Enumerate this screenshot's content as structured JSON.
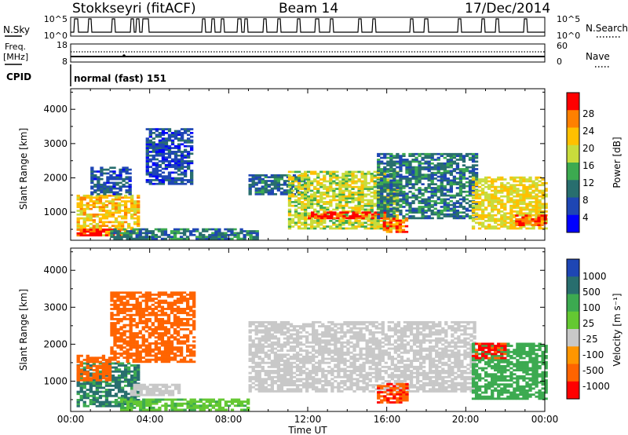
{
  "header": {
    "station": "Stokkseyri (fitACF)",
    "beam": "Beam 14",
    "date": "17/Dec/2014"
  },
  "noise_panel": {
    "left_label": "N.Sky",
    "right_label": "N.Search",
    "left_ticks": [
      "10^5",
      "10^0"
    ],
    "right_ticks": [
      "10^5",
      "10^0"
    ]
  },
  "freq_panel": {
    "left_label_1": "Freq.",
    "left_label_2": "[MHz]",
    "left_ticks": [
      "18",
      "8"
    ],
    "right_label": "Nave",
    "right_ticks": [
      "60",
      "0"
    ]
  },
  "cpid": {
    "label": "CPID",
    "text": "normal (fast) 151"
  },
  "x_axis": {
    "label": "Time UT",
    "ticks": [
      "00:00",
      "04:00",
      "08:00",
      "12:00",
      "16:00",
      "20:00",
      "00:00"
    ]
  },
  "y_axis": {
    "label": "Slant Range [km]",
    "ticks": [
      "1000",
      "2000",
      "3000",
      "4000"
    ]
  },
  "power_colorbar": {
    "label": "Power [dB]",
    "ticks": [
      "28",
      "24",
      "20",
      "16",
      "12",
      "8",
      "4"
    ],
    "colors": [
      "#ff0000",
      "#ff8000",
      "#ffc000",
      "#c8dc3c",
      "#3caa50",
      "#286e6e",
      "#1e46b4",
      "#0000ff"
    ]
  },
  "velocity_colorbar": {
    "label": "Velocity [m s⁻¹]",
    "ticks": [
      "1000",
      "500",
      "100",
      "25",
      "-25",
      "-100",
      "-500",
      "-1000"
    ],
    "colors": [
      "#1e46b4",
      "#286e6e",
      "#3caa50",
      "#64c832",
      "#c8c8c8",
      "#ff9600",
      "#ff6400",
      "#ff0000"
    ]
  },
  "chart_data": [
    {
      "type": "heatmap",
      "panel": "power",
      "colorbar_label": "Power [dB]",
      "xlabel": "Time UT",
      "ylabel": "Slant Range [km]",
      "xlim": [
        "00:00",
        "24:00"
      ],
      "ylim": [
        180,
        4600
      ],
      "clim": [
        0,
        32
      ],
      "regions": [
        {
          "t0": 0.3,
          "t1": 3.5,
          "r0": 300,
          "r1": 1500,
          "level": 22
        },
        {
          "t0": 0.3,
          "t1": 2.5,
          "r0": 300,
          "r1": 500,
          "level": 30
        },
        {
          "t0": 1.0,
          "t1": 3.0,
          "r0": 1500,
          "r1": 2300,
          "level": 7
        },
        {
          "t0": 3.8,
          "t1": 6.2,
          "r0": 1800,
          "r1": 3400,
          "level": 6
        },
        {
          "t0": 2.0,
          "t1": 9.5,
          "r0": 200,
          "r1": 500,
          "level": 10
        },
        {
          "t0": 9.0,
          "t1": 12.0,
          "r0": 1500,
          "r1": 2100,
          "level": 9
        },
        {
          "t0": 11.0,
          "t1": 16.5,
          "r0": 500,
          "r1": 2200,
          "level": 18
        },
        {
          "t0": 12.0,
          "t1": 16.0,
          "r0": 800,
          "r1": 1000,
          "level": 29
        },
        {
          "t0": 15.5,
          "t1": 20.5,
          "r0": 800,
          "r1": 2700,
          "level": 10
        },
        {
          "t0": 15.8,
          "t1": 17.0,
          "r0": 400,
          "r1": 800,
          "level": 27
        },
        {
          "t0": 20.3,
          "t1": 24.0,
          "r0": 500,
          "r1": 2000,
          "level": 20
        },
        {
          "t0": 22.5,
          "t1": 24.0,
          "r0": 600,
          "r1": 900,
          "level": 28
        }
      ]
    },
    {
      "type": "heatmap",
      "panel": "velocity",
      "colorbar_label": "Velocity [m s⁻¹]",
      "xlabel": "Time UT",
      "ylabel": "Slant Range [km]",
      "xlim": [
        "00:00",
        "24:00"
      ],
      "ylim": [
        180,
        4600
      ],
      "clim": [
        -1000,
        1000
      ],
      "regions": [
        {
          "t0": 0.3,
          "t1": 3.5,
          "r0": 300,
          "r1": 1500,
          "value": 600
        },
        {
          "t0": 0.3,
          "t1": 2.0,
          "r0": 1000,
          "r1": 1700,
          "value": -300
        },
        {
          "t0": 2.0,
          "t1": 6.2,
          "r0": 1500,
          "r1": 3400,
          "value": -300
        },
        {
          "t0": 2.5,
          "t1": 9.0,
          "r0": 200,
          "r1": 500,
          "value": 80
        },
        {
          "t0": 3.0,
          "t1": 5.5,
          "r0": 600,
          "r1": 900,
          "value": 0
        },
        {
          "t0": 9.0,
          "t1": 20.5,
          "r0": 700,
          "r1": 2600,
          "value": 0
        },
        {
          "t0": 15.5,
          "t1": 17.0,
          "r0": 400,
          "r1": 900,
          "value": -400
        },
        {
          "t0": 20.3,
          "t1": 24.0,
          "r0": 500,
          "r1": 2000,
          "value": 300
        },
        {
          "t0": 20.3,
          "t1": 22.0,
          "r0": 1600,
          "r1": 2000,
          "value": -600
        }
      ]
    }
  ]
}
